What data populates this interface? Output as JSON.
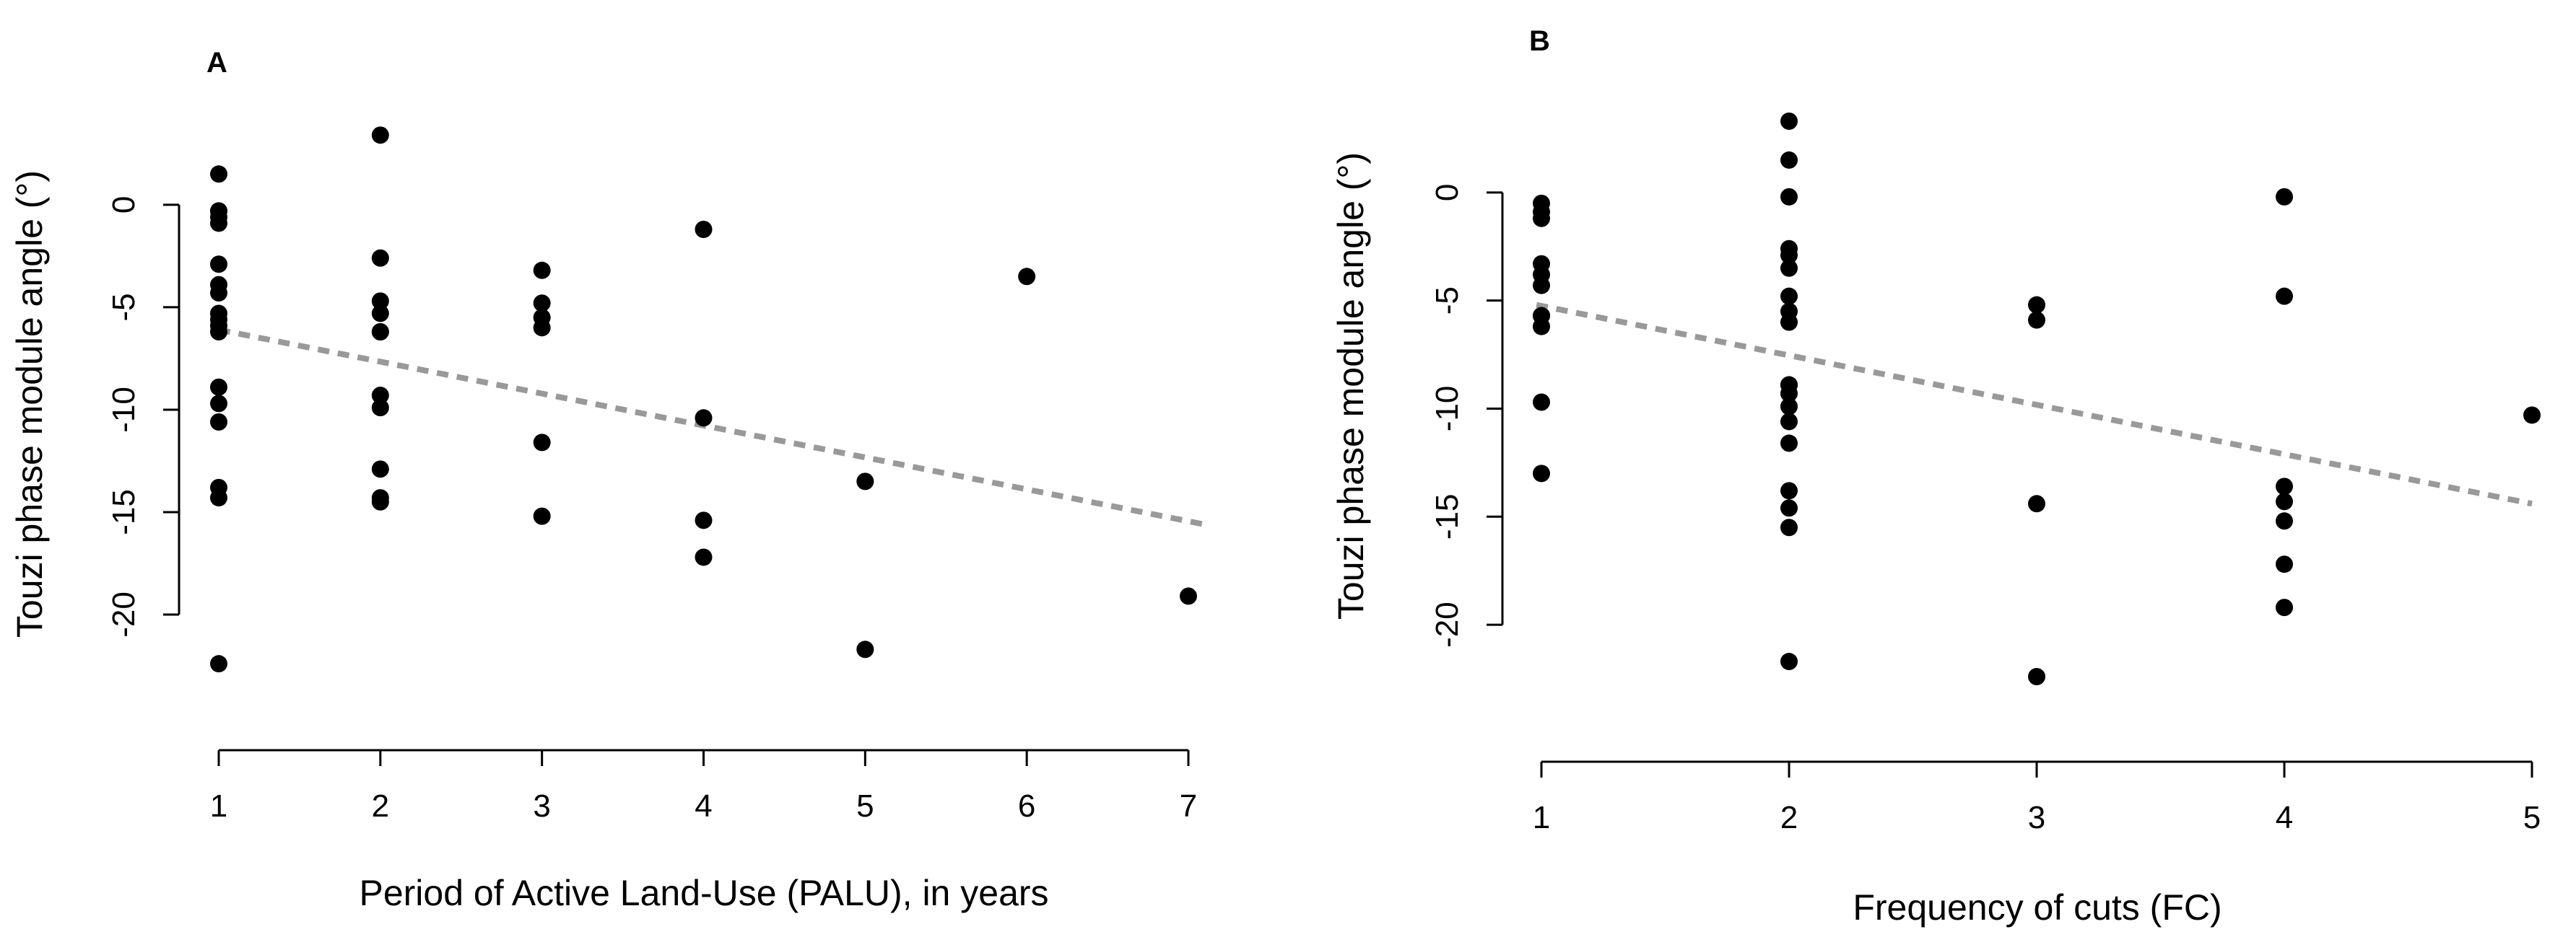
{
  "chart_data": [
    {
      "type": "scatter",
      "panel_label": "A",
      "title": "",
      "xlabel": "Period of Active Land-Use (PALU), in years",
      "ylabel": "Touzi phase module angle (°)",
      "xlim": [
        1,
        7
      ],
      "ylim": [
        -22.5,
        3.2
      ],
      "xticks": [
        1,
        2,
        3,
        4,
        5,
        6,
        7
      ],
      "yticks": [
        0,
        -5,
        -10,
        -15,
        -20
      ],
      "xtick_labels": [
        "1",
        "2",
        "3",
        "4",
        "5",
        "6",
        "7"
      ],
      "ytick_labels": [
        "0",
        "-5",
        "-10",
        "-15",
        "-20"
      ],
      "grid": false,
      "trend_line": {
        "style": "dashed",
        "color": "#999999",
        "x": [
          1,
          7.1
        ],
        "y": [
          -6.1,
          -15.6
        ]
      },
      "points": {
        "x": [
          1,
          1,
          1,
          1,
          1,
          1,
          1,
          1,
          1,
          1,
          1,
          1,
          1,
          1,
          1,
          1,
          1,
          1,
          2,
          2,
          2,
          2,
          2,
          2,
          2,
          2,
          2,
          2,
          2,
          3,
          3,
          3,
          3,
          3,
          3,
          4,
          4,
          4,
          4,
          5,
          5,
          6,
          7
        ],
        "y": [
          1.5,
          -0.3,
          -0.6,
          -0.9,
          -2.9,
          -3.9,
          -4.3,
          -5.3,
          -5.6,
          -5.9,
          -6.2,
          -8.9,
          -9.7,
          -10.6,
          -13.8,
          -14.3,
          -22.4,
          -0.3,
          3.4,
          -2.6,
          -4.7,
          -5.3,
          -6.2,
          -9.3,
          -9.9,
          -12.9,
          -14.3,
          -14.5,
          -6.2,
          -3.2,
          -4.8,
          -5.5,
          -6.0,
          -11.6,
          -15.2,
          -1.2,
          -10.4,
          -15.4,
          -17.2,
          -13.5,
          -21.7,
          -3.5,
          -19.1
        ]
      }
    },
    {
      "type": "scatter",
      "panel_label": "B",
      "title": "",
      "xlabel": "Frequency of cuts (FC)",
      "ylabel": "Touzi phase module angle (°)",
      "xlim": [
        1,
        5
      ],
      "ylim": [
        -22.4,
        3.3
      ],
      "xticks": [
        1,
        2,
        3,
        4,
        5
      ],
      "yticks": [
        0,
        -5,
        -10,
        -15,
        -20
      ],
      "xtick_labels": [
        "1",
        "2",
        "3",
        "4",
        "5"
      ],
      "ytick_labels": [
        "0",
        "-5",
        "-10",
        "-15",
        "-20"
      ],
      "grid": false,
      "trend_line": {
        "style": "dashed",
        "color": "#999999",
        "x": [
          0.98,
          5.0
        ],
        "y": [
          -5.2,
          -14.4
        ]
      },
      "points": {
        "x": [
          1,
          1,
          1,
          1,
          1,
          1,
          1,
          1,
          1,
          1,
          1,
          2,
          2,
          2,
          2,
          2,
          2,
          2,
          2,
          2,
          2,
          2,
          2,
          2,
          2,
          2,
          2,
          2,
          2,
          2,
          3,
          3,
          3,
          3,
          4,
          4,
          4,
          4,
          4,
          4,
          4,
          5
        ],
        "y": [
          -0.5,
          -0.9,
          -1.2,
          -3.3,
          -3.8,
          -4.3,
          -5.7,
          -6.2,
          -9.7,
          -13.0,
          -5.7,
          3.3,
          1.5,
          -0.2,
          -2.6,
          -2.9,
          -3.5,
          -4.8,
          -5.5,
          -6.0,
          -8.9,
          -9.3,
          -9.9,
          -10.6,
          -11.6,
          -13.8,
          -14.6,
          -15.5,
          -21.7,
          -8.9,
          -5.2,
          -5.9,
          -14.4,
          -22.4,
          -0.2,
          -4.8,
          -13.6,
          -14.3,
          -15.2,
          -17.2,
          -19.2,
          -10.3
        ]
      }
    }
  ]
}
